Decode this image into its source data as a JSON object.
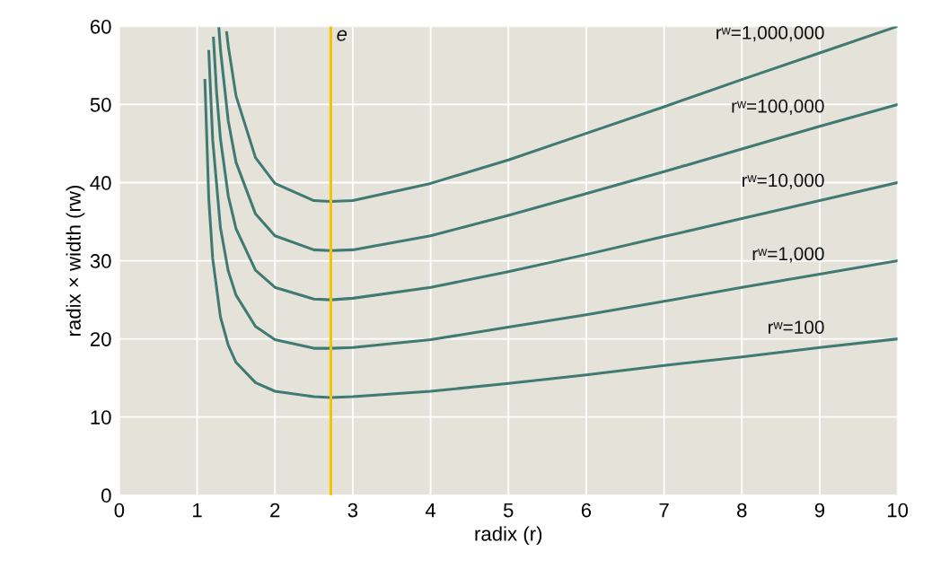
{
  "chart_data": {
    "type": "line",
    "xlabel": "radix (r)",
    "ylabel": "radix × width (rw)",
    "xlim": [
      0,
      10
    ],
    "ylim": [
      0,
      60
    ],
    "xticks": [
      0,
      1,
      2,
      3,
      4,
      5,
      6,
      7,
      8,
      9,
      10
    ],
    "yticks": [
      0,
      10,
      20,
      30,
      40,
      50,
      60
    ],
    "grid": true,
    "marker": "none",
    "line_style": "solid",
    "ref_lines": [
      {
        "axis": "x",
        "value": 2.718,
        "label": "e",
        "color": "#f2c500"
      }
    ],
    "series": [
      {
        "name": "rʷ=100",
        "color": "#3f7a73",
        "x": [
          1.1,
          1.15,
          1.2,
          1.3,
          1.4,
          1.5,
          1.75,
          2,
          2.5,
          2.718,
          3,
          4,
          5,
          6,
          7,
          8,
          9,
          10
        ],
        "values": [
          53.1,
          37.9,
          30.3,
          22.8,
          19.2,
          17.0,
          14.4,
          13.3,
          12.6,
          12.5,
          12.6,
          13.3,
          14.3,
          15.4,
          16.6,
          17.7,
          18.9,
          20.0
        ]
      },
      {
        "name": "rʷ=1,000",
        "color": "#3f7a73",
        "x": [
          1.15,
          1.2,
          1.3,
          1.4,
          1.5,
          1.75,
          2,
          2.5,
          2.718,
          3,
          4,
          5,
          6,
          7,
          8,
          9,
          10
        ],
        "values": [
          56.8,
          45.5,
          34.2,
          28.7,
          25.6,
          21.6,
          19.9,
          18.8,
          18.8,
          18.9,
          19.9,
          21.5,
          23.1,
          24.8,
          26.6,
          28.3,
          30.0
        ]
      },
      {
        "name": "rʷ=10,000",
        "color": "#3f7a73",
        "x": [
          1.21,
          1.25,
          1.3,
          1.4,
          1.5,
          1.75,
          2,
          2.5,
          2.718,
          3,
          4,
          5,
          6,
          7,
          8,
          9,
          10
        ],
        "values": [
          58.5,
          51.6,
          45.6,
          38.3,
          34.1,
          28.8,
          26.6,
          25.1,
          25.0,
          25.2,
          26.6,
          28.6,
          30.8,
          33.1,
          35.4,
          37.7,
          40.0
        ]
      },
      {
        "name": "rʷ=100,000",
        "color": "#3f7a73",
        "x": [
          1.28,
          1.3,
          1.4,
          1.5,
          1.75,
          2,
          2.5,
          2.718,
          3,
          4,
          5,
          6,
          7,
          8,
          9,
          10
        ],
        "values": [
          59.7,
          57.0,
          47.9,
          42.6,
          36.0,
          33.2,
          31.4,
          31.3,
          31.4,
          33.2,
          35.8,
          38.6,
          41.4,
          44.3,
          47.2,
          50.0
        ]
      },
      {
        "name": "rʷ=1,000,000",
        "color": "#3f7a73",
        "x": [
          1.38,
          1.4,
          1.5,
          1.75,
          2,
          2.5,
          2.718,
          3,
          4,
          5,
          6,
          7,
          8,
          9,
          10
        ],
        "values": [
          59.2,
          57.5,
          51.1,
          43.2,
          39.9,
          37.7,
          37.6,
          37.7,
          39.9,
          42.9,
          46.3,
          49.7,
          53.2,
          56.6,
          60.0
        ]
      }
    ]
  }
}
